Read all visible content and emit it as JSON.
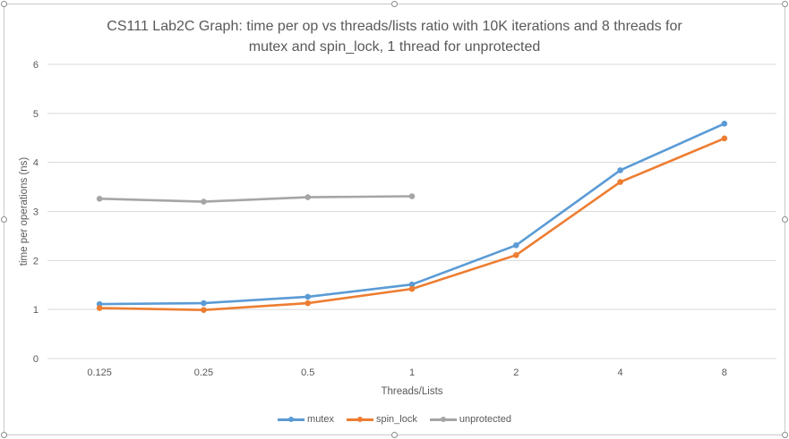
{
  "chart_data": {
    "type": "line",
    "title": "CS111 Lab2C Graph: time per op vs threads/lists ratio with 10K iterations and 8 threads for\nmutex and spin_lock, 1 thread for unprotected",
    "xlabel": "Threads/Lists",
    "ylabel": "time per operations (ns)",
    "categories": [
      "0.125",
      "0.25",
      "0.5",
      "1",
      "2",
      "4",
      "8"
    ],
    "ylim": [
      0,
      6
    ],
    "yticks": [
      "0",
      "1",
      "2",
      "3",
      "4",
      "5",
      "6"
    ],
    "grid": true,
    "legend_position": "bottom",
    "series": [
      {
        "name": "mutex",
        "color": "#5b9bd5",
        "values": [
          1.11,
          1.13,
          1.26,
          1.51,
          2.31,
          3.84,
          4.79
        ]
      },
      {
        "name": "spin_lock",
        "color": "#ed7d31",
        "values": [
          1.03,
          0.99,
          1.13,
          1.42,
          2.11,
          3.6,
          4.49
        ]
      },
      {
        "name": "unprotected",
        "color": "#a5a5a5",
        "values": [
          3.26,
          3.2,
          3.29,
          3.31,
          null,
          null,
          null
        ]
      }
    ]
  }
}
